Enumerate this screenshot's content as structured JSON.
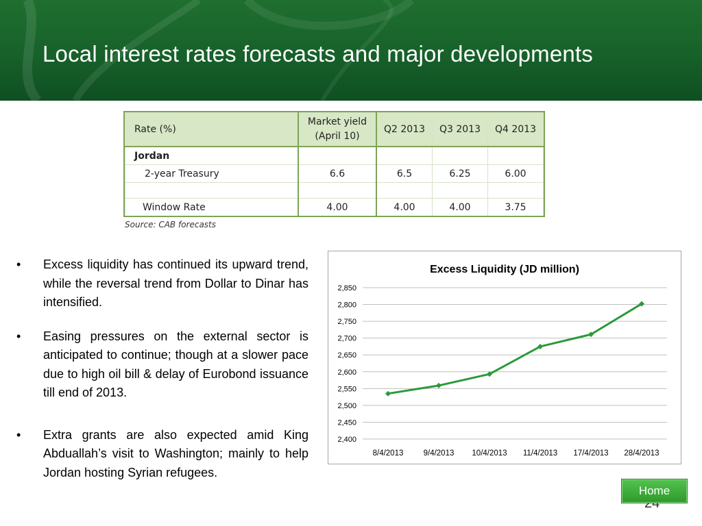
{
  "slide": {
    "title": "Local interest rates forecasts and major developments",
    "page_number": "24",
    "home_label": "Home"
  },
  "rates_table": {
    "headers": {
      "rate": "Rate (%)",
      "market_line1": "Market yield",
      "market_line2": "(April 10)",
      "q2": "Q2 2013",
      "q3": "Q3 2013",
      "q4": "Q4 2013"
    },
    "section": "Jordan",
    "rows": [
      {
        "label": "2-year Treasury",
        "market": "6.6",
        "q2": "6.5",
        "q3": "6.25",
        "q4": "6.00"
      },
      {
        "label": "Window Rate",
        "market": "4.00",
        "q2": "4.00",
        "q3": "4.00",
        "q4": "3.75"
      }
    ],
    "source": "Source: CAB forecasts"
  },
  "bullets": [
    {
      "symbol": "•",
      "text": "Excess liquidity has continued its upward trend, while the reversal trend from Dollar to Dinar has intensified."
    },
    {
      "symbol": "•",
      "text": "Easing pressures on the external sector is anticipated to continue; though at a slower pace due to high oil bill & delay of Eurobond issuance till end of 2013."
    },
    {
      "symbol": "•",
      "text": "Extra grants are also expected amid King Abduallah’s visit to Washington; mainly to help Jordan hosting Syrian refugees."
    }
  ],
  "chart_data": {
    "type": "line",
    "title": "Excess Liquidity (JD million)",
    "categories": [
      "8/4/2013",
      "9/4/2013",
      "10/4/2013",
      "11/4/2013",
      "17/4/2013",
      "28/4/2013"
    ],
    "series": [
      {
        "values": [
          2535,
          2559,
          2593,
          2675,
          2711,
          2802
        ]
      }
    ],
    "ylim": [
      2400,
      2850
    ],
    "yticks": [
      2400,
      2450,
      2500,
      2550,
      2600,
      2650,
      2700,
      2750,
      2800,
      2850
    ],
    "ytick_labels": [
      "2,400",
      "2,450",
      "2,500",
      "2,550",
      "2,600",
      "2,650",
      "2,700",
      "2,750",
      "2,800",
      "2,850"
    ],
    "grid": true,
    "line_color": "#2a9a3a",
    "legend": "none"
  }
}
